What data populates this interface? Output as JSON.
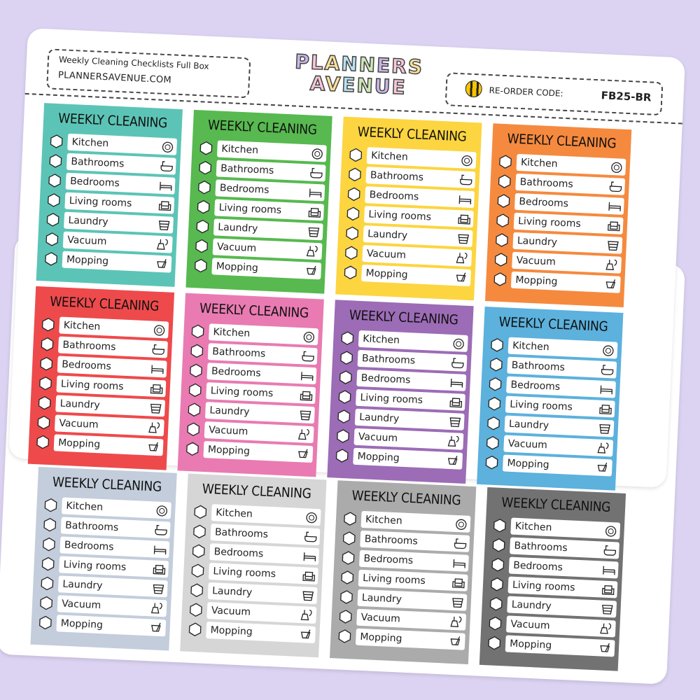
{
  "header": {
    "product_title": "Weekly Cleaning Checklists Full Box",
    "website": "PLANNERSAVENUE.COM",
    "logo_lines": [
      "PLANNERS",
      "AVENUE"
    ],
    "reorder_label": "RE-ORDER CODE:",
    "reorder_code": "FB25-BR"
  },
  "box_title": "WEEKLY CLEANING",
  "items": [
    {
      "label": "Kitchen",
      "icon": "dish-icon"
    },
    {
      "label": "Bathrooms",
      "icon": "bathtub-icon"
    },
    {
      "label": "Bedrooms",
      "icon": "bed-icon"
    },
    {
      "label": "Living rooms",
      "icon": "armchair-icon"
    },
    {
      "label": "Laundry",
      "icon": "laundry-basket-icon"
    },
    {
      "label": "Vacuum",
      "icon": "vacuum-icon"
    },
    {
      "label": "Mopping",
      "icon": "mop-bucket-icon"
    }
  ],
  "front_sheet_colors": [
    "#5cc4b6",
    "#57b94f",
    "#fcd540",
    "#f58a3f",
    "#ee4a4c",
    "#e97bb2",
    "#9c6cb6",
    "#5cb1dd"
  ],
  "back_sheet_colors": [
    "#c3cddb",
    "#d6d6d6",
    "#ababab",
    "#727272"
  ],
  "logo_colors": [
    "#c9b5e6",
    "#f7c7d9",
    "#fde39a",
    "#b8e2ef",
    "#cde8b5"
  ],
  "background_color": "#dcd2f2"
}
